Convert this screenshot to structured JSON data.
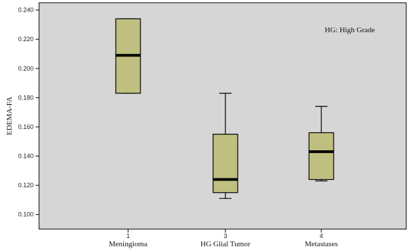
{
  "chart_data": {
    "type": "boxplot",
    "title": "",
    "xlabel": "",
    "ylabel": "EDEMA-FA",
    "ylim": [
      0.09,
      0.245
    ],
    "yticks": [
      "0.100",
      "0.120",
      "0.140",
      "0.160",
      "0.180",
      "0.200",
      "0.220",
      "0.240"
    ],
    "ytick_values": [
      0.1,
      0.12,
      0.14,
      0.16,
      0.18,
      0.2,
      0.22,
      0.24
    ],
    "annotation": "HG: High Grade",
    "grid": false,
    "plot_background": "#d6d6d6",
    "box_fill": "#bfbf7f",
    "categories": [
      {
        "code": "1",
        "label": "Meningioma",
        "whisker_low": 0.183,
        "q1": 0.183,
        "median": 0.209,
        "q3": 0.234,
        "whisker_high": 0.234
      },
      {
        "code": "3",
        "label": "HG Glial Tumor",
        "whisker_low": 0.111,
        "q1": 0.115,
        "median": 0.124,
        "q3": 0.155,
        "whisker_high": 0.183
      },
      {
        "code": "4",
        "label": "Metastases",
        "whisker_low": 0.123,
        "q1": 0.124,
        "median": 0.143,
        "q3": 0.156,
        "whisker_high": 0.174
      }
    ]
  }
}
